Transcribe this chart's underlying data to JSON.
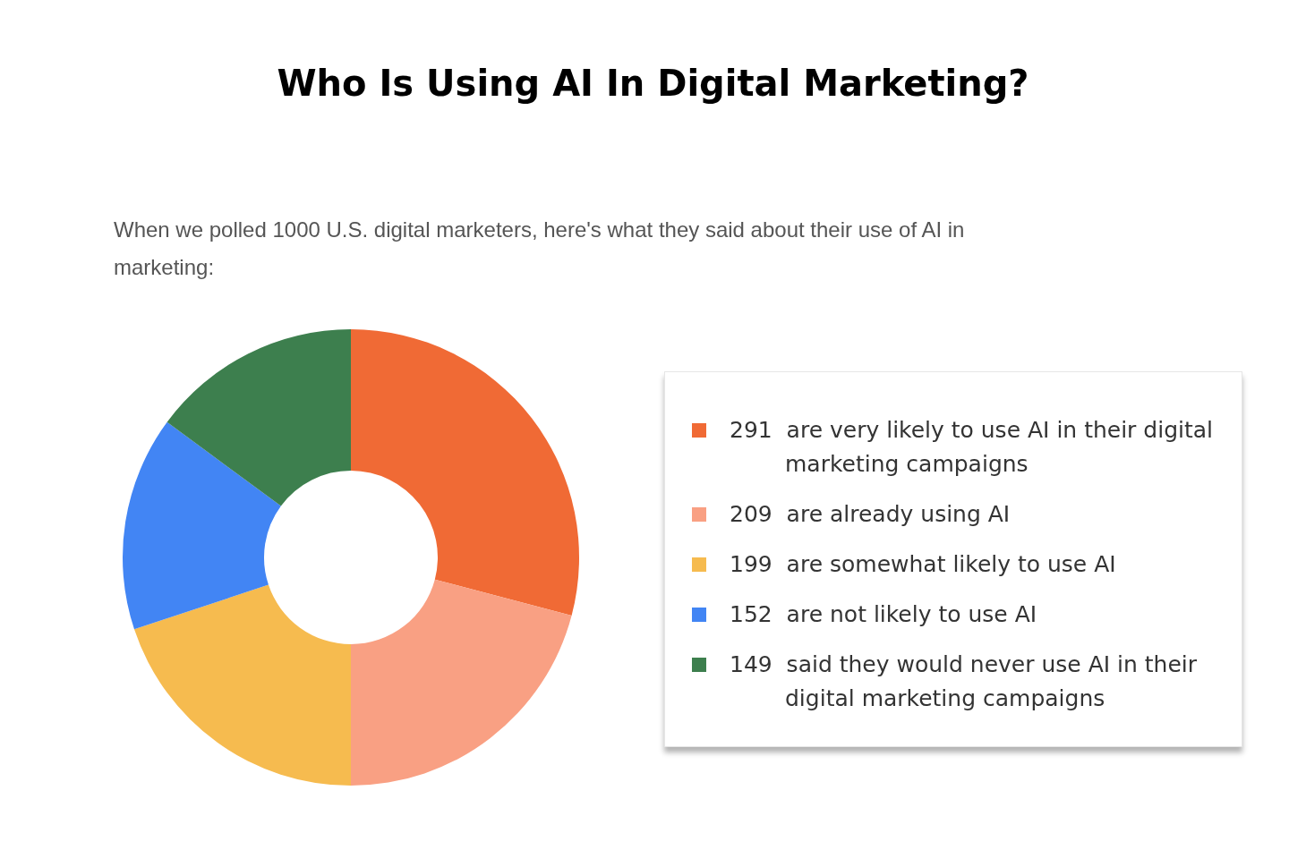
{
  "chart_data": {
    "type": "donut",
    "title": "Who Is Using AI In Digital Marketing?",
    "subtitle": "When we polled 1000 U.S. digital marketers, here's what they said about their use of AI in marketing:",
    "categories": [
      "291  are very likely to use AI in their digital marketing campaigns",
      "209  are already using AI",
      "199  are somewhat likely to use AI",
      "152  are not likely to use AI",
      "149  said they would never use AI in their digital marketing campaigns"
    ],
    "values": [
      291,
      209,
      199,
      152,
      149
    ],
    "colors": [
      "#f06a35",
      "#f9a083",
      "#f6bb4f",
      "#4285f4",
      "#3d7f4e"
    ],
    "legend": "right"
  }
}
